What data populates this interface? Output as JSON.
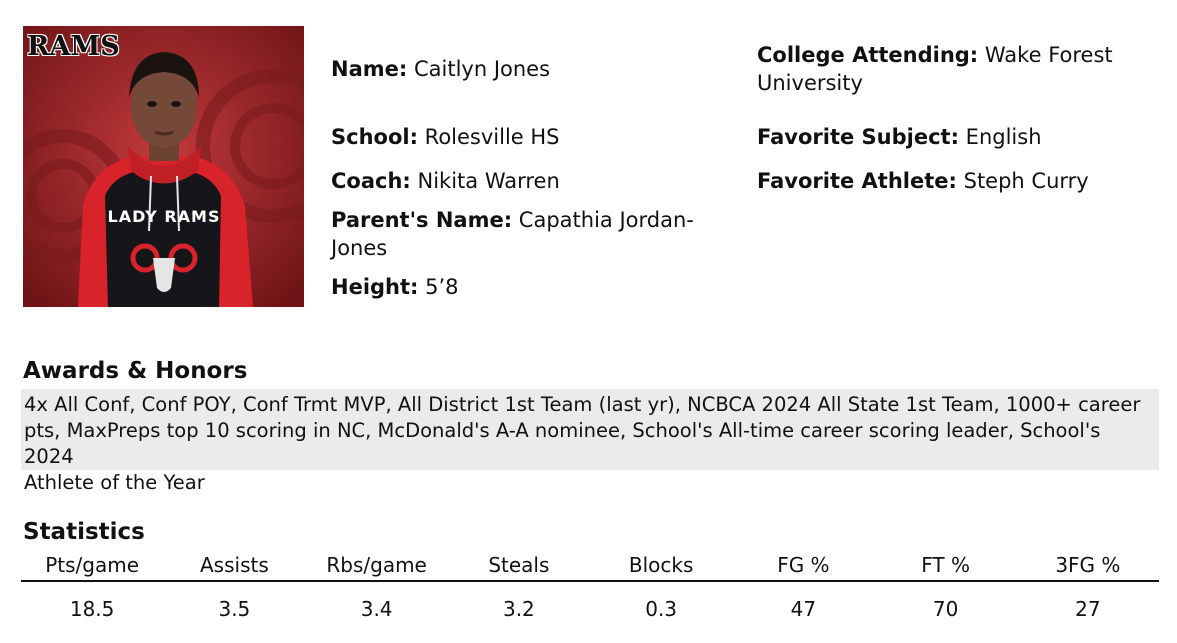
{
  "profile": {
    "photo_logo_text": "RAMS",
    "photo_jersey_text": "LADY RAMS",
    "name": {
      "label": "Name:",
      "value": "Caitlyn Jones"
    },
    "school": {
      "label": "School:",
      "value": "Rolesville HS"
    },
    "coach": {
      "label": "Coach:",
      "value": "Nikita Warren"
    },
    "parent": {
      "label": "Parent's Name:",
      "value_line1": "Capathia Jordan-",
      "value_line2": "Jones"
    },
    "height": {
      "label": "Height:",
      "value": "5’8"
    },
    "college": {
      "label": "College Attending:",
      "value_line1": "Wake Forest",
      "value_line2": "University"
    },
    "subject": {
      "label": "Favorite Subject:",
      "value": "English"
    },
    "athlete": {
      "label": "Favorite Athlete:",
      "value": "Steph Curry"
    }
  },
  "awards": {
    "title": "Awards & Honors",
    "line1": "4x All Conf, Conf POY, Conf Trmt MVP, All District 1st Team (last yr), NCBCA 2024 All State 1st Team, 1000+ career",
    "line2": "pts, MaxPreps top 10 scoring in NC, McDonald's A-A nominee, School's All-time career scoring leader, School's 2024",
    "line3": "Athlete of the Year"
  },
  "statistics": {
    "title": "Statistics",
    "headers": [
      "Pts/game",
      "Assists",
      "Rbs/game",
      "Steals",
      "Blocks",
      "FG %",
      "FT %",
      "3FG %"
    ],
    "values": [
      "18.5",
      "3.5",
      "3.4",
      "3.2",
      "0.3",
      "47",
      "70",
      "27"
    ]
  },
  "colors": {
    "jersey_red": "#d8232a",
    "background_red": "#8f1f22",
    "awards_bg": "#ebebeb"
  }
}
